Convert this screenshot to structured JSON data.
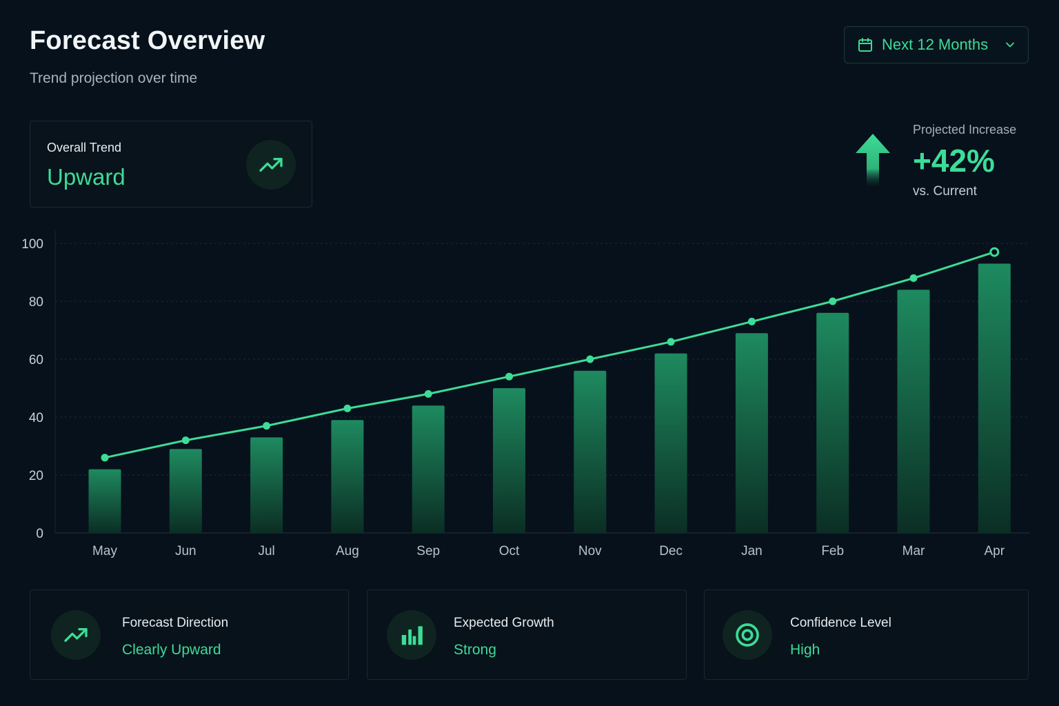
{
  "header": {
    "title": "Forecast Overview",
    "subtitle": "Trend projection over time",
    "range_label": "Next 12 Months"
  },
  "trend_card": {
    "label": "Overall Trend",
    "value": "Upward"
  },
  "projection": {
    "label": "Projected Increase",
    "value": "+42%",
    "sub": "vs. Current"
  },
  "stats": [
    {
      "label": "Forecast Direction",
      "value": "Clearly Upward",
      "icon": "trend-up-icon"
    },
    {
      "label": "Expected Growth",
      "value": "Strong",
      "icon": "bar-chart-icon"
    },
    {
      "label": "Confidence Level",
      "value": "High",
      "icon": "target-icon"
    }
  ],
  "colors": {
    "accent": "#3ddc97",
    "bar_top": "#1e8a5f",
    "bar_bottom": "#0b2e24",
    "background": "#07111b"
  },
  "chart_data": {
    "type": "bar",
    "title": "",
    "xlabel": "",
    "ylabel": "",
    "categories": [
      "May",
      "Jun",
      "Jul",
      "Aug",
      "Sep",
      "Oct",
      "Nov",
      "Dec",
      "Jan",
      "Feb",
      "Mar",
      "Apr"
    ],
    "ylim": [
      0,
      100
    ],
    "yticks": [
      0,
      20,
      40,
      60,
      80,
      100
    ],
    "grid": true,
    "legend": "none",
    "series": [
      {
        "type": "bar",
        "values": [
          22,
          29,
          33,
          39,
          44,
          50,
          56,
          62,
          69,
          76,
          84,
          93
        ]
      },
      {
        "type": "line",
        "values": [
          26,
          32,
          37,
          43,
          48,
          54,
          60,
          66,
          73,
          80,
          88,
          97
        ]
      }
    ]
  }
}
